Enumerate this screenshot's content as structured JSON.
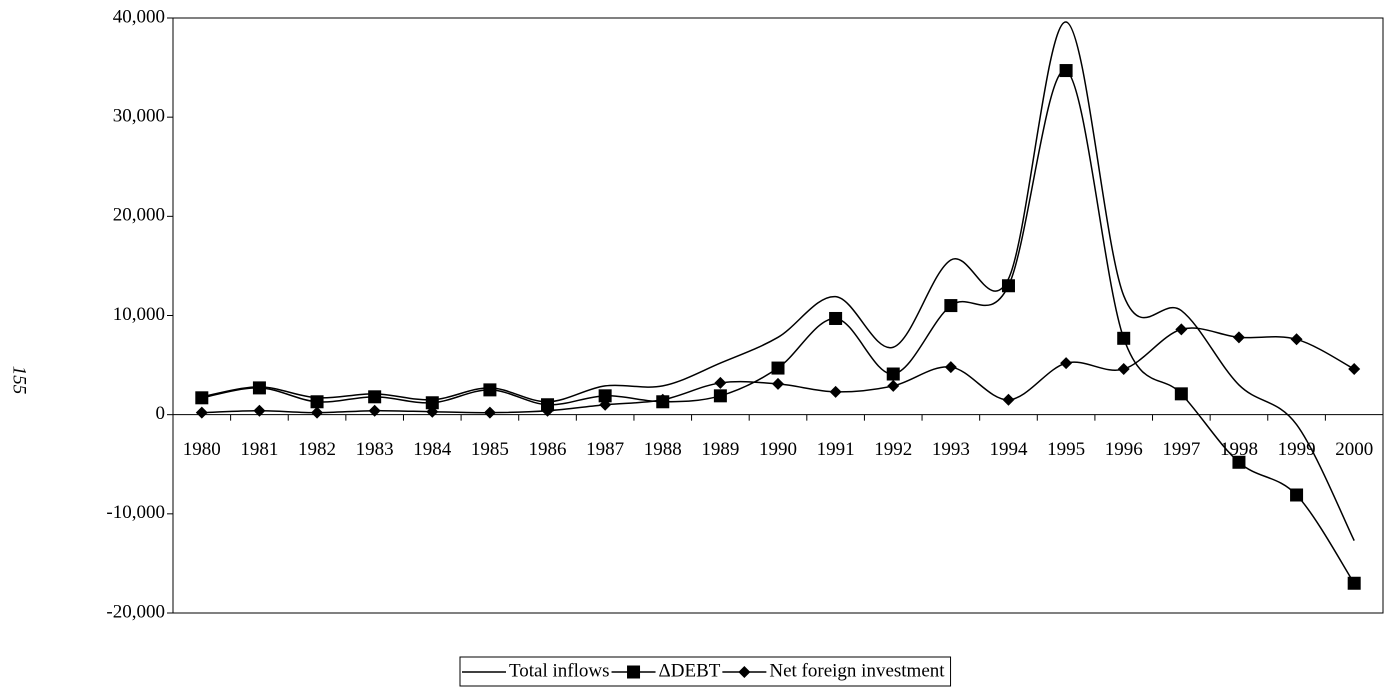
{
  "chart_data": {
    "type": "line",
    "categories": [
      "1980",
      "1981",
      "1982",
      "1983",
      "1984",
      "1985",
      "1986",
      "1987",
      "1988",
      "1989",
      "1990",
      "1991",
      "1992",
      "1993",
      "1994",
      "1995",
      "1996",
      "1997",
      "1998",
      "1999",
      "2000"
    ],
    "series": [
      {
        "name": "Total inflows",
        "color": "#000000",
        "marker": "none",
        "values": [
          1800,
          2800,
          1700,
          2100,
          1500,
          2700,
          1300,
          2900,
          2900,
          5200,
          7800,
          11900,
          6800,
          15600,
          13700,
          39600,
          12000,
          10500,
          3000,
          -1000,
          -12700
        ]
      },
      {
        "name": "ΔDEBT",
        "color": "#000000",
        "marker": "square",
        "values": [
          1700,
          2700,
          1300,
          1800,
          1200,
          2500,
          1000,
          1900,
          1300,
          1900,
          4700,
          9700,
          4100,
          11000,
          13000,
          34700,
          7700,
          2100,
          -4800,
          -8100,
          -17000
        ]
      },
      {
        "name": "Net foreign investment",
        "color": "#000000",
        "marker": "diamond",
        "values": [
          200,
          400,
          200,
          400,
          300,
          200,
          400,
          1000,
          1500,
          3200,
          3100,
          2300,
          2900,
          4800,
          1500,
          5200,
          4600,
          8600,
          7800,
          7600,
          4600
        ]
      }
    ],
    "ylim": [
      -20000,
      40000
    ],
    "yticks": [
      {
        "value": -20000,
        "label": "-20,000"
      },
      {
        "value": -10000,
        "label": "-10,000"
      },
      0,
      {
        "value": 10000,
        "label": "10,000"
      },
      {
        "value": 20000,
        "label": "20,000"
      },
      {
        "value": 30000,
        "label": "30,000"
      },
      {
        "value": 40000,
        "label": "40,000"
      }
    ],
    "grid": false,
    "legend": "bottom",
    "annotations": [
      "155"
    ]
  }
}
